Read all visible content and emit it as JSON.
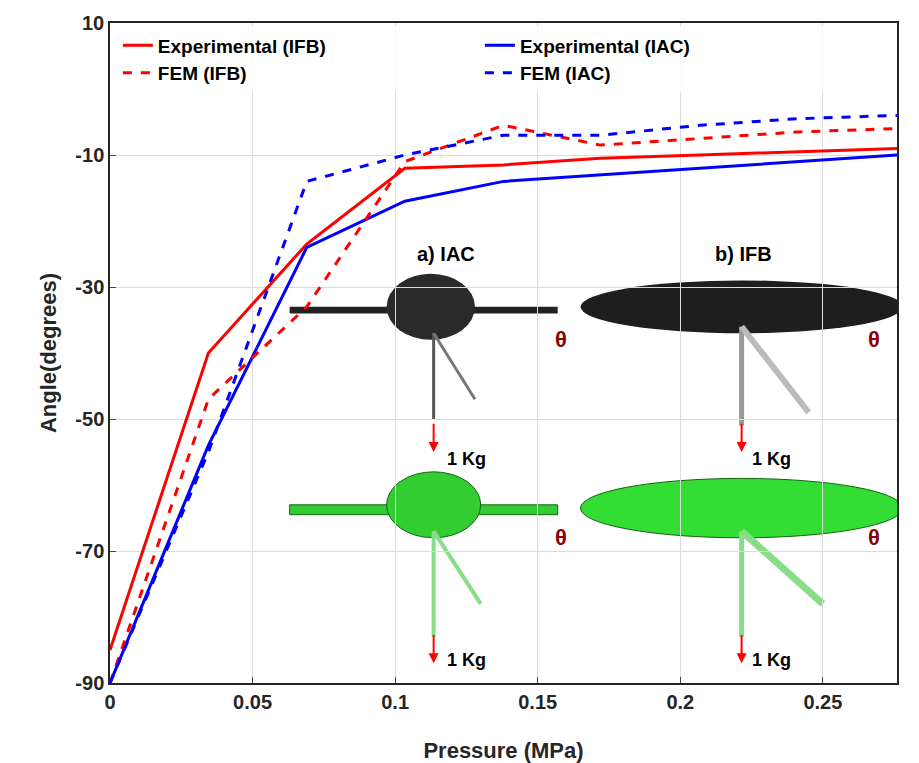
{
  "chart_data": {
    "type": "line",
    "x_label": "Pressure (MPa)",
    "y_label": "Angle(degrees)",
    "x": [
      0,
      0.0345,
      0.069,
      0.1034,
      0.138,
      0.172,
      0.207,
      0.241,
      0.276
    ],
    "series": [
      {
        "name": "Experimental (IFB)",
        "color": "#ff0000",
        "line_style": "solid",
        "values": [
          -85,
          -40,
          -23.5,
          -12,
          -11.5,
          -10.5,
          -10,
          -9.5,
          -9
        ]
      },
      {
        "name": "Experimental (IAC)",
        "color": "#0000ff",
        "line_style": "solid",
        "values": [
          -90,
          -54,
          -24,
          -17,
          -14,
          -13,
          -12,
          -11,
          -10
        ]
      },
      {
        "name": "FEM (IFB)",
        "color": "#ff0000",
        "line_style": "dash",
        "values": [
          -90,
          -47,
          -33,
          -11,
          -5.5,
          -8.5,
          -7.5,
          -6.5,
          -6
        ]
      },
      {
        "name": "FEM (IAC)",
        "color": "#0000ff",
        "line_style": "dash",
        "values": [
          -90,
          -55,
          -14,
          -10,
          -7,
          -7,
          -5.5,
          -4.5,
          -4
        ]
      }
    ],
    "xlim": [
      0,
      0.276
    ],
    "xticks": [
      0,
      0.05,
      0.1,
      0.15,
      0.2,
      0.25
    ],
    "ylim": [
      -90,
      10
    ],
    "yticks": [
      -90,
      -70,
      -50,
      -30,
      -10,
      10
    ],
    "grid": true,
    "legend": "top left",
    "annotations": [
      "a) IAC",
      "b) IFB",
      "θ",
      "θ",
      "θ",
      "θ",
      "1 Kg",
      "1 Kg",
      "1 Kg",
      "1 Kg"
    ]
  }
}
